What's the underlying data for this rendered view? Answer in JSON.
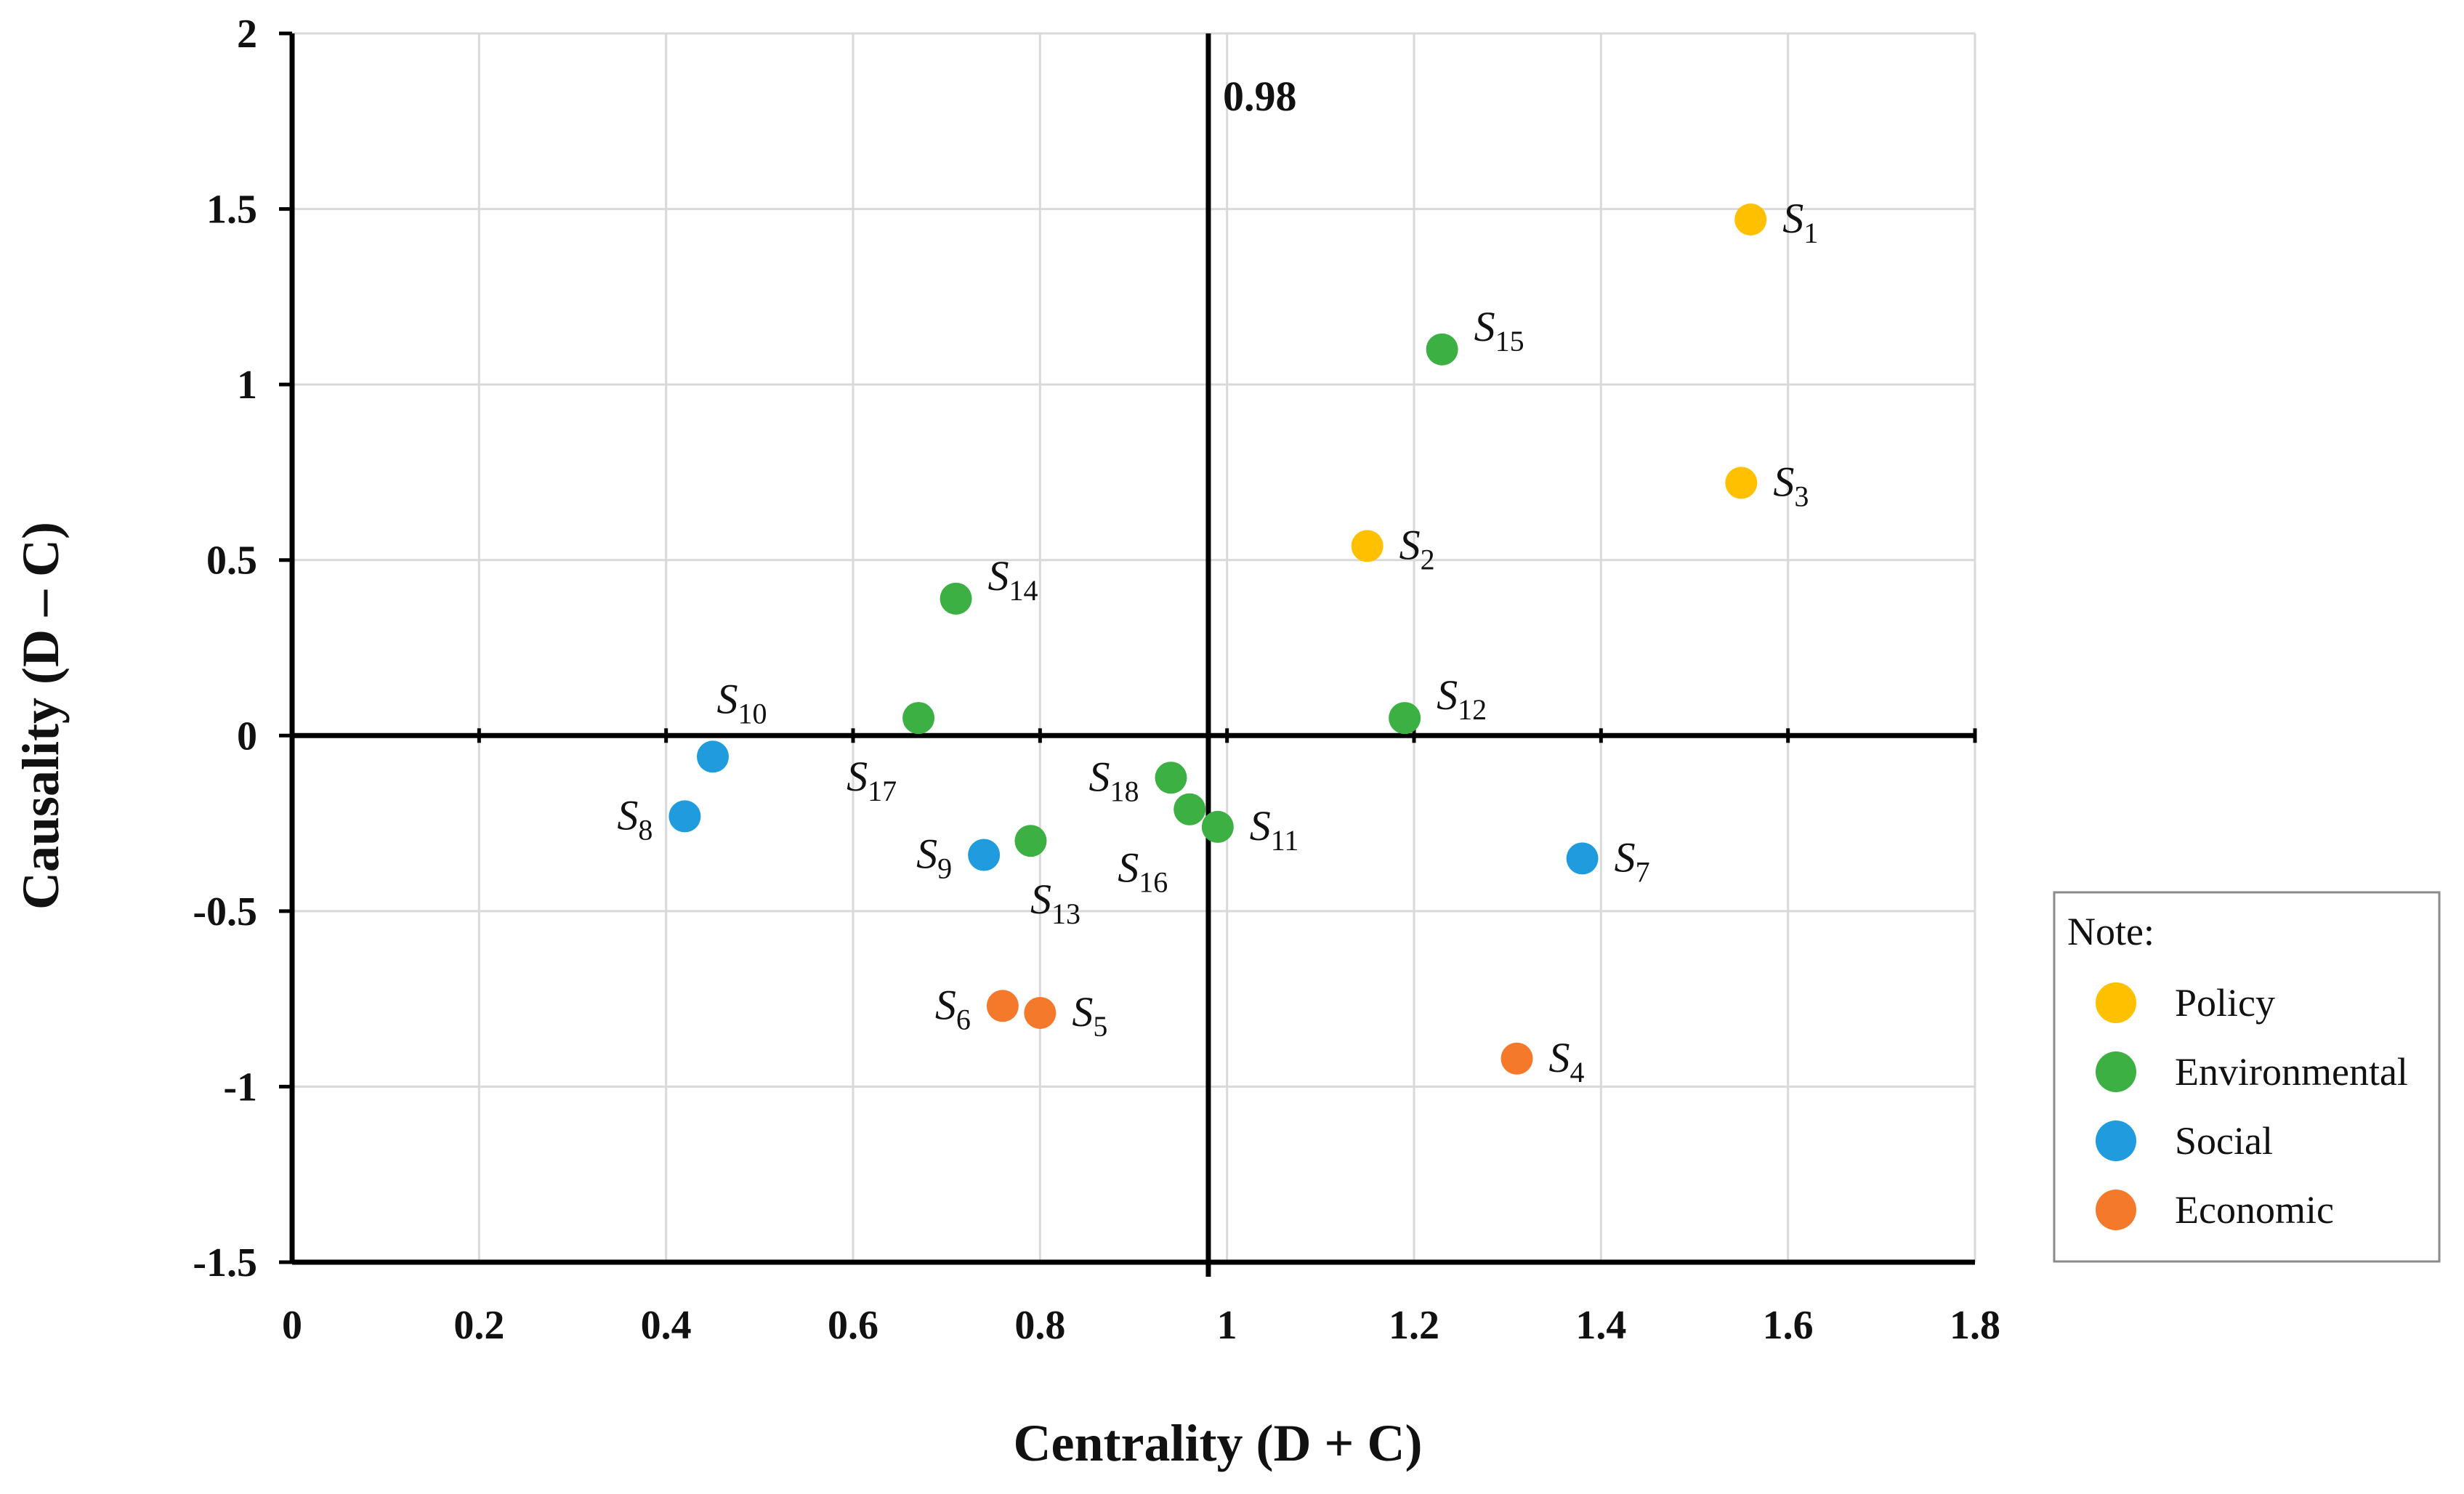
{
  "chart_data": {
    "type": "scatter",
    "title": "",
    "xlabel": "Centrality (D + C)",
    "ylabel": "Causality (D – C)",
    "xlim": [
      0,
      1.8
    ],
    "ylim": [
      -1.5,
      2
    ],
    "x_ticks": [
      0,
      0.2,
      0.4,
      0.6,
      0.8,
      1,
      1.2,
      1.4,
      1.6,
      1.8
    ],
    "x_tick_labels": [
      "0",
      "0.2",
      "0.4",
      "0.6",
      "0.8",
      "1",
      "1.2",
      "1.4",
      "1.6",
      "1.8"
    ],
    "y_ticks": [
      -1.5,
      -1,
      -0.5,
      0,
      0.5,
      1,
      1.5,
      2
    ],
    "y_tick_labels": [
      "-1.5",
      "-1",
      "-0.5",
      "0",
      "0.5",
      "1",
      "1.5",
      "2"
    ],
    "grid": true,
    "threshold": {
      "x": 0.98,
      "label": "0.98"
    },
    "legend": {
      "title": "Note:",
      "position": "right",
      "entries": [
        {
          "name": "Policy",
          "color": "#FFC000"
        },
        {
          "name": "Environmental",
          "color": "#3CB043"
        },
        {
          "name": "Social",
          "color": "#1F9BDE"
        },
        {
          "name": "Economic",
          "color": "#F5792A"
        }
      ]
    },
    "series": [
      {
        "name": "Policy",
        "color": "#FFC000",
        "points": [
          {
            "label": "S",
            "sub": "1",
            "x": 1.56,
            "y": 1.47,
            "pos": "right"
          },
          {
            "label": "S",
            "sub": "2",
            "x": 1.15,
            "y": 0.54,
            "pos": "right"
          },
          {
            "label": "S",
            "sub": "3",
            "x": 1.55,
            "y": 0.72,
            "pos": "right"
          }
        ]
      },
      {
        "name": "Environmental",
        "color": "#3CB043",
        "points": [
          {
            "label": "S",
            "sub": "15",
            "x": 1.23,
            "y": 1.1,
            "pos": "upright"
          },
          {
            "label": "S",
            "sub": "14",
            "x": 0.71,
            "y": 0.39,
            "pos": "upright"
          },
          {
            "label": "S",
            "sub": "17",
            "x": 0.67,
            "y": 0.05,
            "pos": "below-left"
          },
          {
            "label": "S",
            "sub": "12",
            "x": 1.19,
            "y": 0.05,
            "pos": "upright"
          },
          {
            "label": "S",
            "sub": "18",
            "x": 0.94,
            "y": -0.12,
            "pos": "left"
          },
          {
            "label": "S",
            "sub": "16",
            "x": 0.96,
            "y": -0.21,
            "pos": "below-left"
          },
          {
            "label": "S",
            "sub": "11",
            "x": 0.99,
            "y": -0.26,
            "pos": "right"
          },
          {
            "label": "S",
            "sub": "13",
            "x": 0.79,
            "y": -0.3,
            "pos": "below"
          }
        ]
      },
      {
        "name": "Social",
        "color": "#1F9BDE",
        "points": [
          {
            "label": "S",
            "sub": "10",
            "x": 0.45,
            "y": -0.06,
            "pos": "above"
          },
          {
            "label": "S",
            "sub": "8",
            "x": 0.42,
            "y": -0.23,
            "pos": "left"
          },
          {
            "label": "S",
            "sub": "9",
            "x": 0.74,
            "y": -0.34,
            "pos": "left"
          },
          {
            "label": "S",
            "sub": "7",
            "x": 1.38,
            "y": -0.35,
            "pos": "right"
          }
        ]
      },
      {
        "name": "Economic",
        "color": "#F5792A",
        "points": [
          {
            "label": "S",
            "sub": "6",
            "x": 0.76,
            "y": -0.77,
            "pos": "left"
          },
          {
            "label": "S",
            "sub": "5",
            "x": 0.8,
            "y": -0.79,
            "pos": "right"
          },
          {
            "label": "S",
            "sub": "4",
            "x": 1.31,
            "y": -0.92,
            "pos": "right"
          }
        ]
      }
    ]
  }
}
